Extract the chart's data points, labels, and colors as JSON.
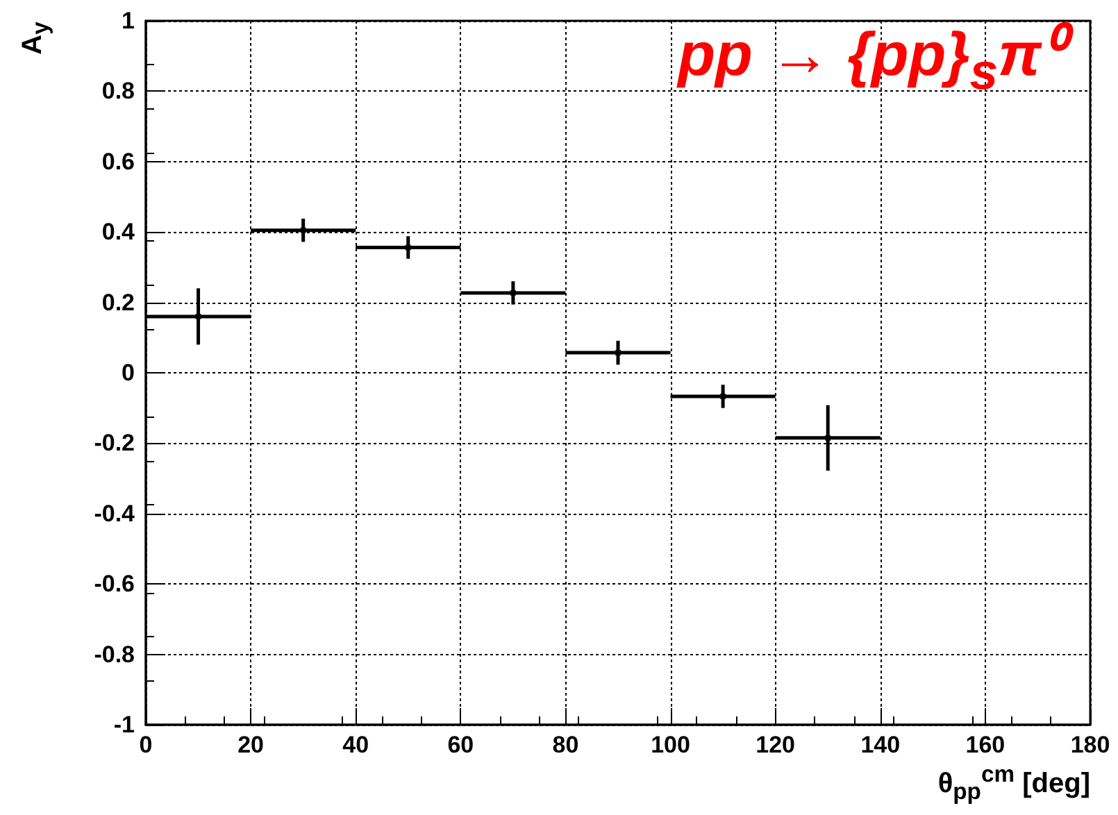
{
  "chart_data": {
    "type": "scatter",
    "title": "pp → {pp}$_{s}$π⁰",
    "xlabel": "θ$_{pp}$$^{cm}$ [deg]",
    "ylabel": "A$_{y}$",
    "x": [
      10,
      30,
      50,
      70,
      90,
      110,
      130
    ],
    "series": [
      {
        "color": "#000000",
        "values": [
          0.16,
          0.405,
          0.356,
          0.227,
          0.057,
          -0.067,
          -0.185
        ],
        "errors": [
          0.08,
          0.033,
          0.032,
          0.033,
          0.034,
          0.033,
          0.093
        ],
        "xerrors": [
          10,
          10,
          10,
          10,
          10,
          10,
          10
        ]
      }
    ],
    "xlim": [
      0,
      180
    ],
    "xticks": [
      0,
      20,
      40,
      60,
      80,
      100,
      120,
      140,
      160,
      180
    ],
    "ylim": [
      -1,
      1
    ],
    "yticks": [
      -1,
      -0.8,
      -0.6,
      -0.4,
      -0.2,
      0,
      0.2,
      0.4,
      0.6,
      0.8,
      1
    ],
    "grid": true
  }
}
